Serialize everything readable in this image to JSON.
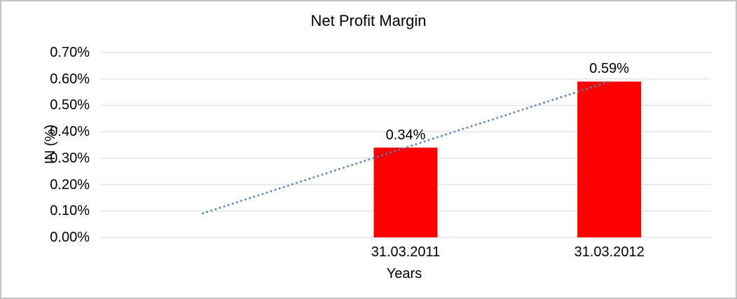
{
  "chart_data": {
    "type": "bar",
    "title": "Net Profit Margin",
    "xlabel": "Years",
    "ylabel": "IN (%)",
    "categories": [
      "",
      "31.03.2011",
      "31.03.2012"
    ],
    "series": [
      {
        "name": "Net Profit Margin",
        "values": [
          null,
          0.34,
          0.59
        ],
        "labels": [
          "",
          "0.34%",
          "0.59%"
        ],
        "color": "#ff0000"
      }
    ],
    "ylim": [
      0,
      0.7
    ],
    "ytick_step": 0.1,
    "ytick_labels": [
      "0.00%",
      "0.10%",
      "0.20%",
      "0.30%",
      "0.40%",
      "0.50%",
      "0.60%",
      "0.70%"
    ],
    "grid": true,
    "gridline_color": "#d9d9d9",
    "legend": "none",
    "trendline": {
      "type": "linear",
      "style": "dotted",
      "color": "#4d82c4",
      "points": [
        {
          "category_index": 0,
          "value": 0.09
        },
        {
          "category_index": 2,
          "value": 0.59
        }
      ]
    }
  },
  "frame": {
    "background": "#ffffff",
    "border_color": "#c4c4c4"
  }
}
